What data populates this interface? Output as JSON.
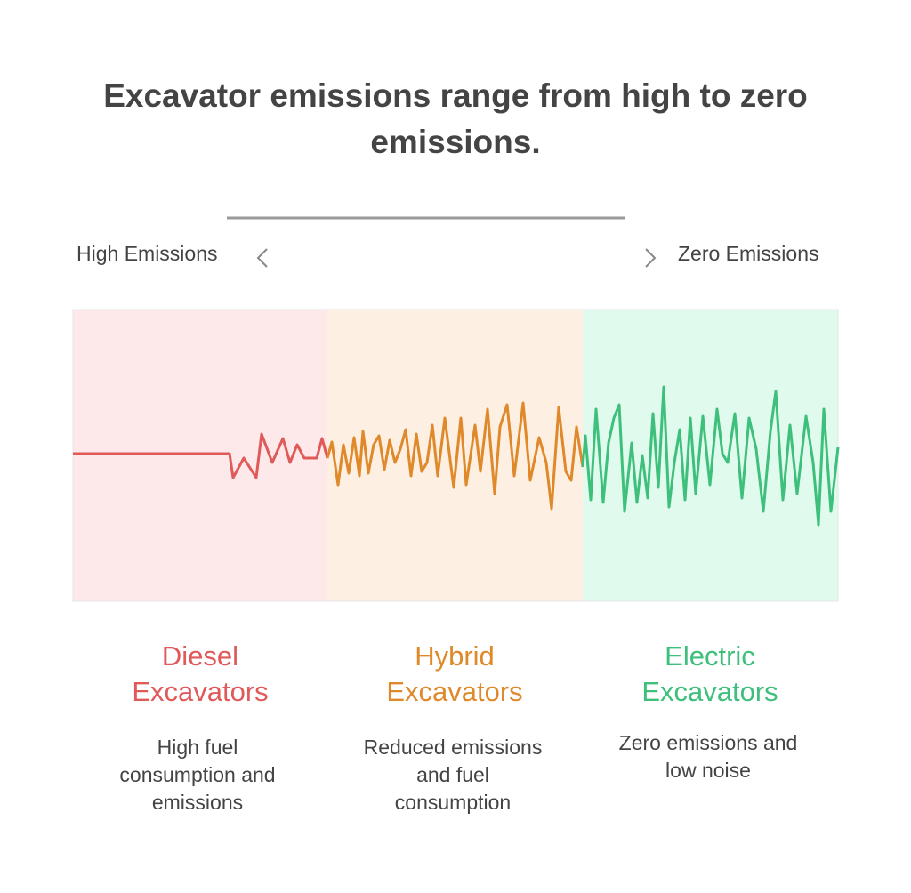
{
  "title": "Excavator emissions range from high to zero emissions.",
  "scale": {
    "left": "High Emissions",
    "right": "Zero Emissions"
  },
  "columns": [
    {
      "name": "Diesel Excavators",
      "description": [
        "High fuel",
        "consumption and",
        "emissions"
      ]
    },
    {
      "name": "Hybrid Excavators",
      "description": [
        "Reduced emissions",
        "and fuel",
        "consumption"
      ]
    },
    {
      "name": "Electric Excavators",
      "description": [
        "Zero emissions and",
        "low noise"
      ]
    }
  ]
}
